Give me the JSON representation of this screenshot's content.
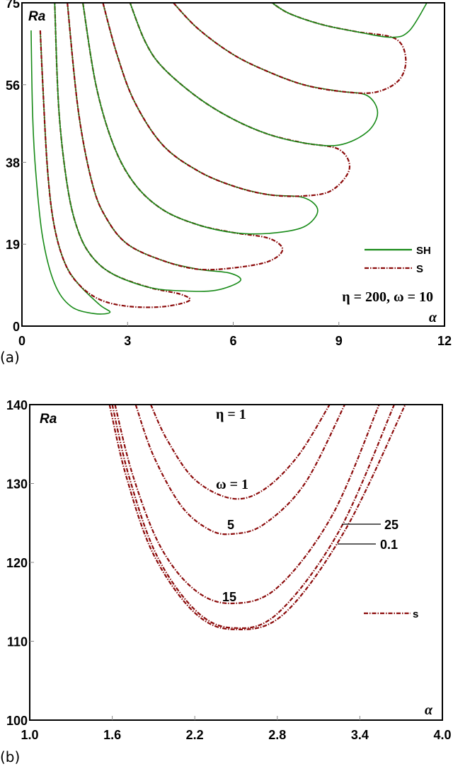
{
  "colors": {
    "SH": "#178a17",
    "S": "#8b0a0a",
    "axis": "#000000"
  },
  "chart_data": [
    {
      "panel_label": "(a)",
      "type": "line",
      "xlabel": "α",
      "ylabel": "Ra",
      "xlim": [
        0,
        12
      ],
      "ylim": [
        0,
        75
      ],
      "xticks": [
        "0",
        "3",
        "6",
        "9",
        "12"
      ],
      "yticks": [
        "0",
        "19",
        "38",
        "56",
        "75"
      ],
      "xtick_values": [
        0,
        3,
        6,
        9,
        12
      ],
      "ytick_values": [
        0,
        19,
        38,
        56,
        75
      ],
      "grid": false,
      "legend_position": "bottom-right",
      "legend": [
        {
          "name": "SH",
          "style": "solid"
        },
        {
          "name": "S",
          "style": "dash-dot"
        }
      ],
      "annotation": "η = 200, ω = 10",
      "series": [
        {
          "name": "SH",
          "points": [
            [
              0.26,
              68.6
            ],
            [
              0.3,
              50
            ],
            [
              0.38,
              37
            ],
            [
              0.58,
              21
            ],
            [
              0.92,
              10
            ],
            [
              1.39,
              4.6
            ],
            [
              2.05,
              2.9
            ],
            [
              2.5,
              3.2
            ],
            [
              2.2,
              5
            ],
            [
              1.6,
              9.8
            ],
            [
              1.2,
              15
            ],
            [
              0.9,
              24
            ],
            [
              0.72,
              37
            ],
            [
              0.58,
              58
            ],
            [
              0.52,
              68.6
            ]
          ]
        },
        {
          "name": "S",
          "points": [
            [
              0.52,
              68.6
            ],
            [
              0.58,
              58
            ],
            [
              0.72,
              37
            ],
            [
              0.9,
              24
            ],
            [
              1.2,
              15
            ],
            [
              1.6,
              9.8
            ],
            [
              2.2,
              6.2
            ],
            [
              3.0,
              4.6
            ],
            [
              4.0,
              4.5
            ],
            [
              4.75,
              5.9
            ],
            [
              4.5,
              7.4
            ],
            [
              3.6,
              9
            ],
            [
              2.6,
              12
            ],
            [
              2.0,
              16
            ],
            [
              1.6,
              22
            ],
            [
              1.3,
              32
            ],
            [
              1.05,
              50
            ],
            [
              0.93,
              75
            ]
          ]
        },
        {
          "name": "SH",
          "points": [
            [
              0.93,
              75
            ],
            [
              1.05,
              50
            ],
            [
              1.3,
              32
            ],
            [
              1.6,
              22
            ],
            [
              2.0,
              16
            ],
            [
              2.6,
              12
            ],
            [
              3.6,
              9
            ],
            [
              4.5,
              8.2
            ],
            [
              5.5,
              8.3
            ],
            [
              6.2,
              10.5
            ],
            [
              5.9,
              12.3
            ],
            [
              5.0,
              13.2
            ],
            [
              4.0,
              15.2
            ],
            [
              3.0,
              19
            ],
            [
              2.4,
              25
            ],
            [
              2.0,
              33
            ],
            [
              1.6,
              50
            ],
            [
              1.29,
              75
            ]
          ]
        },
        {
          "name": "S",
          "points": [
            [
              1.29,
              75
            ],
            [
              1.6,
              50
            ],
            [
              2.0,
              33
            ],
            [
              2.4,
              25
            ],
            [
              3.0,
              19
            ],
            [
              4.0,
              15.2
            ],
            [
              5.0,
              13.2
            ],
            [
              6.0,
              13.5
            ],
            [
              7.0,
              15
            ],
            [
              7.4,
              17.8
            ],
            [
              7.0,
              20.4
            ],
            [
              6.0,
              21.7
            ],
            [
              5.0,
              23.5
            ],
            [
              4.0,
              27
            ],
            [
              3.2,
              33
            ],
            [
              2.6,
              42
            ],
            [
              2.1,
              56
            ],
            [
              1.73,
              75
            ]
          ]
        },
        {
          "name": "SH",
          "points": [
            [
              1.73,
              75
            ],
            [
              2.1,
              56
            ],
            [
              2.6,
              42
            ],
            [
              3.2,
              33
            ],
            [
              4.0,
              27
            ],
            [
              5.0,
              23.5
            ],
            [
              6.0,
              21.7
            ],
            [
              7.0,
              21.5
            ],
            [
              8.0,
              23
            ],
            [
              8.4,
              26.8
            ],
            [
              8.0,
              29.8
            ],
            [
              7.0,
              30.5
            ],
            [
              6.0,
              32.5
            ],
            [
              5.0,
              36
            ],
            [
              4.0,
              42
            ],
            [
              3.2,
              52
            ],
            [
              2.7,
              63
            ],
            [
              2.3,
              75
            ]
          ]
        },
        {
          "name": "S",
          "points": [
            [
              2.3,
              75
            ],
            [
              2.7,
              63
            ],
            [
              3.2,
              52
            ],
            [
              4.0,
              42
            ],
            [
              5.0,
              36
            ],
            [
              6.0,
              32.5
            ],
            [
              7.0,
              30.5
            ],
            [
              8.0,
              30.2
            ],
            [
              8.8,
              31.5
            ],
            [
              9.3,
              36.5
            ],
            [
              9.0,
              41
            ],
            [
              8.0,
              42.5
            ],
            [
              7.0,
              44.5
            ],
            [
              6.0,
              48
            ],
            [
              5.0,
              53
            ],
            [
              4.0,
              60
            ],
            [
              3.5,
              66
            ],
            [
              3.07,
              75
            ]
          ]
        },
        {
          "name": "SH",
          "points": [
            [
              3.07,
              75
            ],
            [
              3.5,
              66
            ],
            [
              4.0,
              60
            ],
            [
              5.0,
              53
            ],
            [
              6.0,
              48
            ],
            [
              7.0,
              44.5
            ],
            [
              8.0,
              42.5
            ],
            [
              9.0,
              42
            ],
            [
              9.8,
              45
            ],
            [
              10.1,
              49.5
            ],
            [
              9.8,
              53.5
            ],
            [
              9.0,
              54.5
            ],
            [
              8.0,
              56
            ],
            [
              7.0,
              59
            ],
            [
              6.0,
              63
            ],
            [
              5.0,
              69
            ],
            [
              4.3,
              75
            ]
          ]
        },
        {
          "name": "S",
          "points": [
            [
              4.3,
              75
            ],
            [
              5.0,
              69
            ],
            [
              6.0,
              63
            ],
            [
              7.0,
              59
            ],
            [
              8.0,
              56
            ],
            [
              9.0,
              54.5
            ],
            [
              10.0,
              54.2
            ],
            [
              10.7,
              57
            ],
            [
              10.9,
              62
            ],
            [
              10.6,
              66.7
            ],
            [
              9.5,
              68.3
            ],
            [
              8.5,
              70
            ],
            [
              7.6,
              72.5
            ],
            [
              7.1,
              75
            ]
          ]
        },
        {
          "name": "SH",
          "points": [
            [
              7.1,
              75
            ],
            [
              7.6,
              72.5
            ],
            [
              8.5,
              70
            ],
            [
              9.5,
              68.3
            ],
            [
              10.5,
              67
            ],
            [
              11.0,
              68.5
            ],
            [
              11.5,
              75
            ]
          ]
        }
      ]
    },
    {
      "panel_label": "(b)",
      "type": "line",
      "xlabel": "α",
      "ylabel": "Ra",
      "xlim": [
        1.0,
        4.0
      ],
      "ylim": [
        100,
        140
      ],
      "xticks": [
        "1.0",
        "1.6",
        "2.2",
        "2.8",
        "3.4",
        "4.0"
      ],
      "yticks": [
        "100",
        "110",
        "120",
        "130",
        "140"
      ],
      "xtick_values": [
        1.0,
        1.6,
        2.2,
        2.8,
        3.4,
        4.0
      ],
      "ytick_values": [
        100,
        110,
        120,
        130,
        140
      ],
      "grid": false,
      "legend_position": "right",
      "legend": [
        {
          "name": "s",
          "style": "dash-dot"
        }
      ],
      "annotation": "η = 1",
      "curve_labels": {
        "w1": "ω = 1",
        "w5": "5",
        "w15": "15",
        "w25": "25",
        "w01": "0.1"
      },
      "series": [
        {
          "omega": 1,
          "points": [
            [
              1.88,
              140
            ],
            [
              2.0,
              135.5
            ],
            [
              2.2,
              130.5
            ],
            [
              2.47,
              128.1
            ],
            [
              2.7,
              129.2
            ],
            [
              2.95,
              133.5
            ],
            [
              3.18,
              140
            ]
          ]
        },
        {
          "omega": 5,
          "points": [
            [
              1.77,
              140
            ],
            [
              1.9,
              133.5
            ],
            [
              2.1,
              127.2
            ],
            [
              2.3,
              124.2
            ],
            [
              2.47,
              123.6
            ],
            [
              2.7,
              124.8
            ],
            [
              3.0,
              130
            ],
            [
              3.29,
              140
            ]
          ]
        },
        {
          "omega": 15,
          "points": [
            [
              1.62,
              140
            ],
            [
              1.75,
              131
            ],
            [
              1.95,
              122
            ],
            [
              2.2,
              116.5
            ],
            [
              2.47,
              114.8
            ],
            [
              2.8,
              116.8
            ],
            [
              3.2,
              126
            ],
            [
              3.54,
              140
            ]
          ]
        },
        {
          "omega": 25,
          "points": [
            [
              1.6,
              140
            ],
            [
              1.72,
              131
            ],
            [
              1.92,
              121
            ],
            [
              2.2,
              114
            ],
            [
              2.47,
              111.7
            ],
            [
              2.8,
              113.5
            ],
            [
              3.25,
              124
            ],
            [
              3.65,
              140
            ]
          ]
        },
        {
          "omega": 0.1,
          "points": [
            [
              1.58,
              140
            ],
            [
              1.7,
              131
            ],
            [
              1.9,
              121
            ],
            [
              2.2,
              113.6
            ],
            [
              2.49,
              111.5
            ],
            [
              2.85,
              113.5
            ],
            [
              3.3,
              124.3
            ],
            [
              3.73,
              140
            ]
          ]
        }
      ]
    }
  ]
}
